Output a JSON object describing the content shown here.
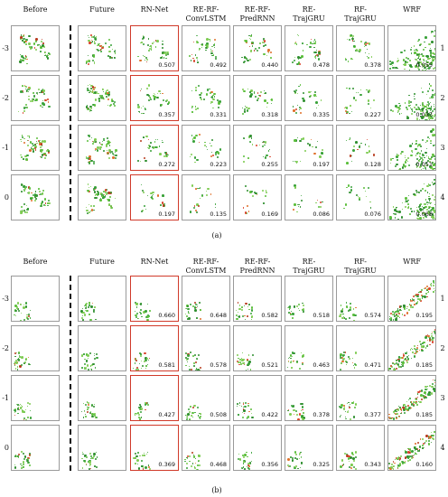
{
  "figure": {
    "row_labels": [
      "-3",
      "-2",
      "-1",
      "0"
    ],
    "right_labels": [
      "1",
      "2",
      "3",
      "4"
    ],
    "column_headers": [
      {
        "key": "before",
        "line1": "Before",
        "line2": ""
      },
      {
        "key": "future",
        "line1": "Future",
        "line2": ""
      },
      {
        "key": "rnnet",
        "line1": "RN-Net",
        "line2": ""
      },
      {
        "key": "reconvlstm",
        "line1": "RE-RF-",
        "line2": "ConvLSTM"
      },
      {
        "key": "repredrnn",
        "line1": "RE-RF-",
        "line2": "PredRNN"
      },
      {
        "key": "retrajgru",
        "line1": "RE-",
        "line2": "TrajGRU"
      },
      {
        "key": "rftrajgru",
        "line1": "RF-",
        "line2": "TrajGRU"
      },
      {
        "key": "wrf",
        "line1": "WRF",
        "line2": ""
      }
    ],
    "highlight_color": "#d03a2a",
    "subfigures": [
      {
        "caption": "(a)",
        "scores": [
          [
            "0.507",
            "0.492",
            "0.440",
            "0.478",
            "0.378",
            "0.055"
          ],
          [
            "0.357",
            "0.331",
            "0.318",
            "0.335",
            "0.227",
            "0.037"
          ],
          [
            "0.272",
            "0.223",
            "0.255",
            "0.197",
            "0.128",
            "0.051"
          ],
          [
            "0.197",
            "0.135",
            "0.169",
            "0.086",
            "0.076",
            "0.068"
          ]
        ]
      },
      {
        "caption": "(b)",
        "scores": [
          [
            "0.660",
            "0.648",
            "0.582",
            "0.518",
            "0.574",
            "0.195"
          ],
          [
            "0.581",
            "0.578",
            "0.521",
            "0.463",
            "0.471",
            "0.185"
          ],
          [
            "0.427",
            "0.508",
            "0.422",
            "0.378",
            "0.377",
            "0.185"
          ],
          [
            "0.369",
            "0.468",
            "0.356",
            "0.325",
            "0.343",
            "0.160"
          ]
        ]
      }
    ]
  }
}
